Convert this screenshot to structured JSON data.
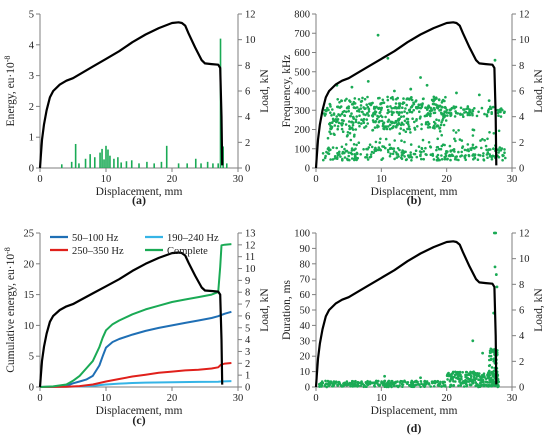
{
  "colors": {
    "load": "#000000",
    "ae": "#1aaa55",
    "band_50_100": "#1f6fb5",
    "band_190_240": "#35b4e6",
    "band_250_350": "#e0201b",
    "complete": "#1aaa55",
    "axis": "#7f7f7f"
  },
  "chart_data": [
    {
      "id": "a",
      "type": "bar",
      "panel_label": "(a)",
      "xlabel": "Displacement, mm",
      "ylabel": "Energy, eu·10",
      "ylabel_sup": "-8",
      "y2label": "Load, kN",
      "xlim": [
        0,
        30
      ],
      "ylim": [
        0,
        5
      ],
      "y2lim": [
        0,
        12
      ],
      "xticks": [
        "0",
        "10",
        "20",
        "30"
      ],
      "yticks": [
        "0",
        "1",
        "2",
        "3",
        "4",
        "5"
      ],
      "y2ticks": [
        "0",
        "2",
        "4",
        "6",
        "8",
        "10",
        "12"
      ],
      "series": [
        {
          "kind": "load_curve",
          "axis": "y2",
          "color_key": "load",
          "x": [
            0,
            0.1,
            0.3,
            0.6,
            1,
            1.5,
            2,
            3,
            4,
            5,
            6,
            8,
            10,
            12,
            14,
            16,
            18,
            20,
            21,
            21.5,
            22,
            22.5,
            23.5,
            24.5,
            25,
            26,
            27,
            27.3,
            27.5,
            27.6
          ],
          "y": [
            0,
            0.8,
            2.2,
            3.4,
            4.5,
            5.5,
            6.0,
            6.5,
            6.8,
            7.0,
            7.3,
            7.9,
            8.5,
            9.1,
            9.8,
            10.4,
            10.9,
            11.3,
            11.35,
            11.3,
            11.1,
            10.5,
            9.4,
            8.4,
            8.15,
            8.1,
            8.05,
            7.8,
            4.0,
            0.2
          ]
        },
        {
          "kind": "impulses",
          "axis": "y",
          "color_key": "ae",
          "x": [
            3.3,
            4.8,
            5.4,
            5.9,
            6.9,
            7.6,
            8.3,
            9.1,
            9.4,
            9.7,
            10.0,
            10.3,
            10.6,
            11.2,
            11.8,
            12.3,
            13.1,
            13.9,
            15.0,
            16.2,
            17.3,
            18.4,
            19.2,
            21.0,
            22.3,
            23.6,
            24.4,
            25.4,
            26.2,
            27.0,
            27.35,
            27.75,
            28.3
          ],
          "y": [
            0.12,
            0.2,
            0.78,
            0.15,
            0.3,
            0.45,
            0.35,
            0.5,
            0.62,
            0.28,
            0.72,
            0.6,
            0.4,
            0.3,
            0.35,
            0.18,
            0.22,
            0.25,
            0.15,
            0.2,
            0.15,
            0.2,
            0.72,
            0.15,
            0.15,
            0.3,
            0.15,
            0.2,
            0.15,
            0.15,
            4.2,
            0.7,
            0.15
          ]
        }
      ]
    },
    {
      "id": "b",
      "type": "scatter",
      "panel_label": "(b)",
      "xlabel": "Displacement, mm",
      "ylabel": "Frequency, kHz",
      "y2label": "Load, kN",
      "xlim": [
        0,
        30
      ],
      "ylim": [
        0,
        800
      ],
      "y2lim": [
        0,
        12
      ],
      "xticks": [
        "0",
        "10",
        "20",
        "30"
      ],
      "yticks": [
        "0",
        "100",
        "200",
        "300",
        "400",
        "500",
        "600",
        "700",
        "800"
      ],
      "y2ticks": [
        "0",
        "2",
        "4",
        "6",
        "8",
        "10",
        "12"
      ],
      "series": [
        {
          "kind": "load_curve",
          "axis": "y2",
          "color_key": "load",
          "x": [
            0,
            0.1,
            0.3,
            0.6,
            1,
            1.5,
            2,
            3,
            4,
            5,
            6,
            8,
            10,
            12,
            14,
            16,
            18,
            20,
            21,
            21.5,
            22,
            22.5,
            23.5,
            24.5,
            25,
            26,
            27,
            27.3,
            27.5,
            27.6
          ],
          "y": [
            0,
            0.8,
            2.2,
            3.4,
            4.5,
            5.5,
            6.0,
            6.5,
            6.8,
            7.0,
            7.3,
            7.9,
            8.5,
            9.1,
            9.8,
            10.4,
            10.9,
            11.3,
            11.35,
            11.3,
            11.1,
            10.5,
            9.4,
            8.4,
            8.15,
            8.1,
            8.05,
            7.8,
            4.0,
            0.2
          ]
        },
        {
          "kind": "band",
          "axis": "y",
          "color_key": "ae",
          "x_range": [
            1,
            29
          ],
          "y_range": [
            265,
            320
          ],
          "density": 230
        },
        {
          "kind": "band",
          "axis": "y",
          "color_key": "ae",
          "x_range": [
            2,
            20
          ],
          "y_range": [
            310,
            370
          ],
          "density": 120
        },
        {
          "kind": "band",
          "axis": "y",
          "color_key": "ae",
          "x_range": [
            2,
            20
          ],
          "y_range": [
            200,
            260
          ],
          "density": 160
        },
        {
          "kind": "band",
          "axis": "y",
          "color_key": "ae",
          "x_range": [
            1,
            29
          ],
          "y_range": [
            40,
            110
          ],
          "density": 260
        },
        {
          "kind": "band",
          "axis": "y",
          "color_key": "ae",
          "x_range": [
            1,
            29
          ],
          "y_range": [
            110,
            200
          ],
          "density": 70
        },
        {
          "kind": "points",
          "axis": "y",
          "color_key": "ae",
          "x": [
            9.5,
            3.2,
            5.5,
            8.0,
            12.0,
            14.5,
            17.0,
            21.5,
            25.0,
            26.5,
            27.4,
            27.8,
            11.0,
            16.0
          ],
          "y": [
            690,
            430,
            420,
            450,
            400,
            410,
            430,
            390,
            380,
            350,
            560,
            300,
            570,
            470
          ]
        }
      ]
    },
    {
      "id": "c",
      "type": "line",
      "panel_label": "(c)",
      "xlabel": "Displacement, mm",
      "ylabel": "Cumulative energy, eu·10",
      "ylabel_sup": "-8",
      "y2label": "Load, kN",
      "xlim": [
        0,
        30
      ],
      "ylim": [
        0,
        25
      ],
      "y2lim": [
        0,
        13
      ],
      "xticks": [
        "0",
        "10",
        "20",
        "30"
      ],
      "yticks": [
        "0",
        "5",
        "10",
        "15",
        "20",
        "25"
      ],
      "y2ticks": [
        "0",
        "1",
        "2",
        "3",
        "4",
        "5",
        "6",
        "7",
        "8",
        "9",
        "10",
        "11",
        "12",
        "13"
      ],
      "legend": [
        "50–100 Hz",
        "190–240 Hz",
        "250–350 Hz",
        "Complete"
      ],
      "series": [
        {
          "kind": "load_curve",
          "axis": "y2",
          "color_key": "load",
          "x": [
            0,
            0.1,
            0.3,
            0.6,
            1,
            1.5,
            2,
            3,
            4,
            5,
            6,
            8,
            10,
            12,
            14,
            16,
            18,
            20,
            21,
            21.5,
            22,
            22.5,
            23.5,
            24.5,
            25,
            26,
            27,
            27.3,
            27.5,
            27.6
          ],
          "y": [
            0,
            0.8,
            2.2,
            3.4,
            4.5,
            5.5,
            6.0,
            6.5,
            6.8,
            7.0,
            7.3,
            7.9,
            8.5,
            9.1,
            9.8,
            10.4,
            10.9,
            11.3,
            11.35,
            11.3,
            11.1,
            10.5,
            9.4,
            8.4,
            8.15,
            8.1,
            8.05,
            7.8,
            4.0,
            0.2
          ]
        },
        {
          "name": "50–100 Hz",
          "color_key": "band_50_100",
          "axis": "y",
          "x": [
            0,
            2,
            4,
            5,
            6,
            7,
            8,
            9,
            9.5,
            10,
            11,
            12,
            14,
            16,
            18,
            20,
            22,
            24,
            26,
            27,
            28,
            29
          ],
          "y": [
            0,
            0.05,
            0.2,
            0.6,
            0.9,
            1.2,
            1.8,
            3.5,
            5.0,
            6.4,
            7.3,
            7.8,
            8.5,
            9.1,
            9.6,
            10.0,
            10.4,
            10.8,
            11.2,
            11.5,
            11.9,
            12.2
          ]
        },
        {
          "name": "190–240 Hz",
          "color_key": "band_190_240",
          "axis": "y",
          "x": [
            0,
            4,
            6,
            8,
            10,
            12,
            14,
            16,
            20,
            24,
            27,
            27.4,
            29
          ],
          "y": [
            0,
            0.05,
            0.1,
            0.2,
            0.4,
            0.55,
            0.65,
            0.72,
            0.78,
            0.82,
            0.85,
            0.9,
            0.95
          ]
        },
        {
          "name": "250–350 Hz",
          "color_key": "band_250_350",
          "axis": "y",
          "x": [
            0,
            4,
            6,
            8,
            10,
            12,
            14,
            16,
            18,
            20,
            22,
            24,
            26,
            27,
            27.4,
            28,
            29
          ],
          "y": [
            0,
            0.05,
            0.15,
            0.4,
            0.9,
            1.3,
            1.7,
            2.0,
            2.3,
            2.5,
            2.7,
            2.8,
            3.0,
            3.2,
            3.6,
            3.8,
            3.9
          ]
        },
        {
          "name": "Complete",
          "color_key": "complete",
          "axis": "y",
          "x": [
            0,
            2,
            4,
            5,
            6,
            7,
            8,
            9,
            9.5,
            10,
            11,
            12,
            14,
            16,
            18,
            20,
            22,
            24,
            26,
            27,
            27.3,
            27.5,
            28,
            29
          ],
          "y": [
            0,
            0.1,
            0.4,
            1.0,
            1.8,
            3.0,
            4.2,
            6.5,
            8.0,
            9.2,
            10.2,
            10.8,
            11.8,
            12.6,
            13.2,
            13.8,
            14.2,
            14.6,
            15.0,
            15.4,
            19.5,
            23.0,
            23.1,
            23.2
          ]
        }
      ]
    },
    {
      "id": "d",
      "type": "scatter",
      "panel_label": "(d)",
      "xlabel": "Displacement, mm",
      "ylabel": "Duration, ms",
      "y2label": "Load, kN",
      "xlim": [
        0,
        30
      ],
      "ylim": [
        0,
        100
      ],
      "y2lim": [
        0,
        12
      ],
      "xticks": [
        "0",
        "10",
        "20",
        "30"
      ],
      "yticks": [
        "0",
        "10",
        "20",
        "30",
        "40",
        "50",
        "60",
        "70",
        "80",
        "90",
        "100"
      ],
      "y2ticks": [
        "0",
        "2",
        "4",
        "6",
        "8",
        "10",
        "12"
      ],
      "series": [
        {
          "kind": "load_curve",
          "axis": "y2",
          "color_key": "load",
          "x": [
            0,
            0.1,
            0.3,
            0.6,
            1,
            1.5,
            2,
            3,
            4,
            5,
            6,
            8,
            10,
            12,
            14,
            16,
            18,
            20,
            21,
            21.5,
            22,
            22.5,
            23.5,
            24.5,
            25,
            26,
            27,
            27.3,
            27.5,
            27.6
          ],
          "y": [
            0,
            0.8,
            2.2,
            3.4,
            4.5,
            5.5,
            6.0,
            6.5,
            6.8,
            7.0,
            7.3,
            7.9,
            8.5,
            9.1,
            9.8,
            10.4,
            10.9,
            11.3,
            11.35,
            11.3,
            11.1,
            10.5,
            9.4,
            8.4,
            8.15,
            8.1,
            8.05,
            7.8,
            4.0,
            0.2
          ]
        },
        {
          "kind": "band",
          "axis": "y",
          "color_key": "ae",
          "x_range": [
            0.5,
            20
          ],
          "y_range": [
            0,
            4
          ],
          "density": 260
        },
        {
          "kind": "band",
          "axis": "y",
          "color_key": "ae",
          "x_range": [
            20,
            28
          ],
          "y_range": [
            0,
            10
          ],
          "density": 240
        },
        {
          "kind": "band",
          "axis": "y",
          "color_key": "ae",
          "x_range": [
            26.5,
            27.8
          ],
          "y_range": [
            5,
            25
          ],
          "density": 60
        },
        {
          "kind": "points",
          "axis": "y",
          "color_key": "ae",
          "x": [
            27.3,
            27.5,
            27.6,
            27.4,
            27.7,
            27.2,
            10.5,
            16.0,
            24.0,
            25.5
          ],
          "y": [
            100,
            100,
            73,
            78,
            65,
            48,
            7,
            6,
            30,
            22
          ]
        }
      ]
    }
  ]
}
